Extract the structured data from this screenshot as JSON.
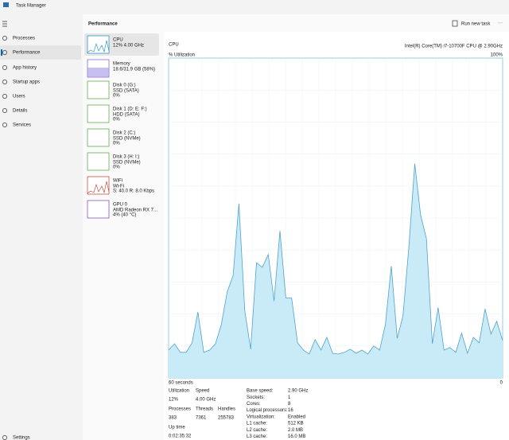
{
  "window": {
    "title": "Task Manager"
  },
  "nav": {
    "items": [
      "Processes",
      "Performance",
      "App history",
      "Startup apps",
      "Users",
      "Details",
      "Services"
    ],
    "settings": "Settings"
  },
  "header": {
    "title": "Performance",
    "action": "Run new task"
  },
  "devices": [
    {
      "name": "CPU",
      "lines": [
        "12% 4.00 GHz"
      ]
    },
    {
      "name": "Memory",
      "lines": [
        "18.6/31.9 GB (58%)"
      ]
    },
    {
      "name": "Disk 0 (G:)",
      "lines": [
        "SSD (SATA)",
        "0%"
      ]
    },
    {
      "name": "Disk 1 (D: E: F:)",
      "lines": [
        "HDD (SATA)",
        "0%"
      ]
    },
    {
      "name": "Disk 2 (C:)",
      "lines": [
        "SSD (NVMe)",
        "0%"
      ]
    },
    {
      "name": "Disk 3 (H: I:)",
      "lines": [
        "SSD (NVMe)",
        "0%"
      ]
    },
    {
      "name": "WiFi",
      "lines": [
        "Wi-Fi",
        "S: 40.0 R: 8.0 Kbps"
      ]
    },
    {
      "name": "GPU 0",
      "lines": [
        "AMD Radeon RX 7...",
        "4% (40 °C)"
      ]
    }
  ],
  "detail": {
    "title": "CPU",
    "model": "Intel(R) Core(TM) i7-10700F CPU @ 2.90GHz",
    "y_label": "% Utilization",
    "y_max_label": "100%",
    "x_left_label": "60 seconds",
    "x_right_label": "0",
    "graph": {
      "type": "area",
      "ylim": [
        0,
        100
      ],
      "fill": "#c9eaf7",
      "stroke": "#4fa3cc",
      "values": [
        8.7,
        10.7,
        8,
        8,
        11,
        20.6,
        8,
        8.7,
        10.7,
        16.7,
        27,
        32,
        54.5,
        21,
        9,
        36,
        34.6,
        38.6,
        24,
        46,
        25,
        25,
        11,
        8.7,
        7.5,
        12,
        8.7,
        12.7,
        7.7,
        7.5,
        8,
        9,
        7.7,
        8.7,
        7.5,
        10,
        8.7,
        16.7,
        35,
        12.4,
        19.4,
        41,
        67,
        51,
        43.5,
        10.7,
        22,
        8.7,
        9.5,
        8,
        14,
        7.7,
        12.7,
        11,
        21.6,
        13.7,
        17.7,
        11.7
      ]
    },
    "stats": [
      {
        "label": "Utilization",
        "value": "12%"
      },
      {
        "label": "Speed",
        "value": "4.00 GHz"
      },
      {
        "label": "Processes",
        "value": "383"
      },
      {
        "label": "Threads",
        "value": "7361"
      },
      {
        "label": "Handles",
        "value": "255783"
      },
      {
        "label": "Up time",
        "value": "0:02:35:32"
      }
    ],
    "specs": [
      {
        "label": "Base speed:",
        "value": "2.90 GHz"
      },
      {
        "label": "Sockets:",
        "value": "1"
      },
      {
        "label": "Cores:",
        "value": "8"
      },
      {
        "label": "Logical processors:",
        "value": "16"
      },
      {
        "label": "Virtualization:",
        "value": "Enabled"
      },
      {
        "label": "L1 cache:",
        "value": "512 KB"
      },
      {
        "label": "L2 cache:",
        "value": "2.0 MB"
      },
      {
        "label": "L3 cache:",
        "value": "16.0 MB"
      }
    ]
  }
}
